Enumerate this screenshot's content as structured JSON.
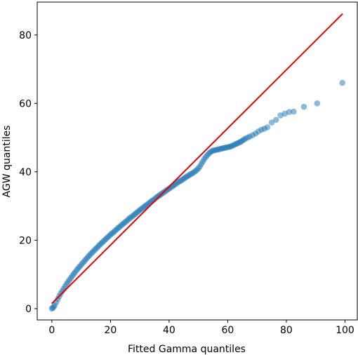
{
  "chart_data": {
    "type": "scatter",
    "title": "",
    "xlabel": "Fitted Gamma quantiles",
    "ylabel": "AGW quantiles",
    "xlim": [
      -5,
      104.2
    ],
    "ylim": [
      -3.3,
      89.6
    ],
    "xticks": [
      0,
      20,
      40,
      60,
      80,
      100
    ],
    "yticks": [
      0,
      20,
      40,
      60,
      80
    ],
    "grid": false,
    "reference_line": {
      "color": "#e60000",
      "from": [
        0,
        1.5
      ],
      "to": [
        99.2,
        86.2
      ]
    },
    "series": [
      {
        "marker_color": "#1f77b4",
        "marker_alpha": 0.5,
        "points": [
          [
            0,
            0
          ],
          [
            0.3,
            0.2
          ],
          [
            0.6,
            0.5
          ],
          [
            1.0,
            1.0
          ],
          [
            1.5,
            1.9
          ],
          [
            2.0,
            2.8
          ],
          [
            2.5,
            3.6
          ],
          [
            3.0,
            4.4
          ],
          [
            3.5,
            5.1
          ],
          [
            4.0,
            5.8
          ],
          [
            4.5,
            6.5
          ],
          [
            5.0,
            7.2
          ],
          [
            5.5,
            7.8
          ],
          [
            6.0,
            8.4
          ],
          [
            6.5,
            9.0
          ],
          [
            7.0,
            9.6
          ],
          [
            7.5,
            10.2
          ],
          [
            8.0,
            10.7
          ],
          [
            8.5,
            11.3
          ],
          [
            9.0,
            11.8
          ],
          [
            9.5,
            12.3
          ],
          [
            10.0,
            12.8
          ],
          [
            10.5,
            13.3
          ],
          [
            11.0,
            13.8
          ],
          [
            11.5,
            14.3
          ],
          [
            12.0,
            14.8
          ],
          [
            12.5,
            15.3
          ],
          [
            13.0,
            15.7
          ],
          [
            13.5,
            16.2
          ],
          [
            14.0,
            16.6
          ],
          [
            14.5,
            17.1
          ],
          [
            15.0,
            17.5
          ],
          [
            15.5,
            17.9
          ],
          [
            16.0,
            18.4
          ],
          [
            16.5,
            18.8
          ],
          [
            17.0,
            19.2
          ],
          [
            17.5,
            19.6
          ],
          [
            18.0,
            20.0
          ],
          [
            18.5,
            20.4
          ],
          [
            19.0,
            20.8
          ],
          [
            19.5,
            21.2
          ],
          [
            20.0,
            21.6
          ],
          [
            20.5,
            22.0
          ],
          [
            21.0,
            22.3
          ],
          [
            21.5,
            22.7
          ],
          [
            22.0,
            23.1
          ],
          [
            22.5,
            23.5
          ],
          [
            23.0,
            23.8
          ],
          [
            23.5,
            24.2
          ],
          [
            24.0,
            24.6
          ],
          [
            24.5,
            24.9
          ],
          [
            25.0,
            25.3
          ],
          [
            25.5,
            25.6
          ],
          [
            26.0,
            26.0
          ],
          [
            26.5,
            26.4
          ],
          [
            27.0,
            26.7
          ],
          [
            27.5,
            27.0
          ],
          [
            28.0,
            27.4
          ],
          [
            28.5,
            27.7
          ],
          [
            29.0,
            28.1
          ],
          [
            29.5,
            28.4
          ],
          [
            30.0,
            28.8
          ],
          [
            30.5,
            29.1
          ],
          [
            31.0,
            29.4
          ],
          [
            31.5,
            29.8
          ],
          [
            32.0,
            30.1
          ],
          [
            32.5,
            30.4
          ],
          [
            33.0,
            30.7
          ],
          [
            33.5,
            31.1
          ],
          [
            34.0,
            31.4
          ],
          [
            34.5,
            31.7
          ],
          [
            35.0,
            32.0
          ],
          [
            35.5,
            32.4
          ],
          [
            36.0,
            32.7
          ],
          [
            36.5,
            33.0
          ],
          [
            37.0,
            33.3
          ],
          [
            37.5,
            33.6
          ],
          [
            38.0,
            33.9
          ],
          [
            38.5,
            34.2
          ],
          [
            39.0,
            34.5
          ],
          [
            39.5,
            34.8
          ],
          [
            40.0,
            35.1
          ],
          [
            40.5,
            35.4
          ],
          [
            41.0,
            35.7
          ],
          [
            41.5,
            36.0
          ],
          [
            42.0,
            36.3
          ],
          [
            42.5,
            36.6
          ],
          [
            43.0,
            36.9
          ],
          [
            43.5,
            37.2
          ],
          [
            44.0,
            37.4
          ],
          [
            44.5,
            37.7
          ],
          [
            45.0,
            38.0
          ],
          [
            45.5,
            38.3
          ],
          [
            46.0,
            38.6
          ],
          [
            46.5,
            38.8
          ],
          [
            47.0,
            39.1
          ],
          [
            47.5,
            39.4
          ],
          [
            48.0,
            39.6
          ],
          [
            48.5,
            39.9
          ],
          [
            49.0,
            40.2
          ],
          [
            49.5,
            40.6
          ],
          [
            50.0,
            41.0
          ],
          [
            50.5,
            41.6
          ],
          [
            51.0,
            42.3
          ],
          [
            51.5,
            43.0
          ],
          [
            52.0,
            43.7
          ],
          [
            52.5,
            44.3
          ],
          [
            53.0,
            44.8
          ],
          [
            53.5,
            45.3
          ],
          [
            54.0,
            45.7
          ],
          [
            54.5,
            46.0
          ],
          [
            55.0,
            46.2
          ],
          [
            55.5,
            46.3
          ],
          [
            56.0,
            46.4
          ],
          [
            56.5,
            46.5
          ],
          [
            57.0,
            46.6
          ],
          [
            57.5,
            46.7
          ],
          [
            58.0,
            46.8
          ],
          [
            58.5,
            46.9
          ],
          [
            59.0,
            47.0
          ],
          [
            59.5,
            47.1
          ],
          [
            60.0,
            47.2
          ],
          [
            60.5,
            47.3
          ],
          [
            61.0,
            47.4
          ],
          [
            61.5,
            47.6
          ],
          [
            62.0,
            47.8
          ],
          [
            62.5,
            48.0
          ],
          [
            63.0,
            48.2
          ],
          [
            63.5,
            48.4
          ],
          [
            64.0,
            48.6
          ],
          [
            64.5,
            48.8
          ],
          [
            65.0,
            49.1
          ],
          [
            65.5,
            49.4
          ],
          [
            66.0,
            49.7
          ],
          [
            66.8,
            50.0
          ],
          [
            67.5,
            50.3
          ],
          [
            68.5,
            50.7
          ],
          [
            69.5,
            51.2
          ],
          [
            70.5,
            51.8
          ],
          [
            71.5,
            52.3
          ],
          [
            72.5,
            52.6
          ],
          [
            73.5,
            53.0
          ],
          [
            75.0,
            54.4
          ],
          [
            76.5,
            55.2
          ],
          [
            78.0,
            56.5
          ],
          [
            79.5,
            57.0
          ],
          [
            81.0,
            57.5
          ],
          [
            82.5,
            57.6
          ],
          [
            86.0,
            59.0
          ],
          [
            90.5,
            60.0
          ],
          [
            99.1,
            66.0
          ]
        ]
      }
    ]
  }
}
